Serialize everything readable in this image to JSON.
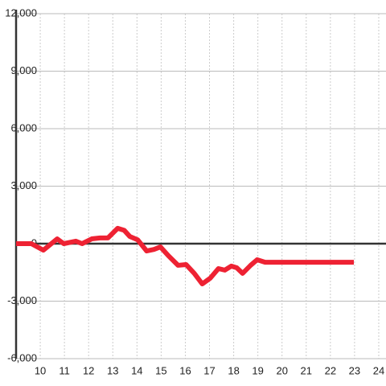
{
  "chart_data": {
    "type": "line",
    "x": [
      9,
      9.63,
      10.13,
      10.7,
      10.97,
      11.47,
      11.73,
      12.13,
      12.47,
      12.8,
      13.2,
      13.47,
      13.7,
      14.03,
      14.4,
      14.7,
      14.97,
      15.3,
      15.7,
      16.03,
      16.37,
      16.7,
      17.03,
      17.37,
      17.63,
      17.9,
      18.13,
      18.37,
      18.7,
      18.97,
      19.3,
      22.97
    ],
    "series": [
      {
        "color": "#ee2233",
        "values": [
          0,
          0,
          -340,
          250,
          0,
          130,
          0,
          250,
          300,
          300,
          800,
          700,
          380,
          200,
          -380,
          -300,
          -170,
          -630,
          -1130,
          -1090,
          -1550,
          -2100,
          -1800,
          -1300,
          -1380,
          -1170,
          -1260,
          -1550,
          -1130,
          -840,
          -970,
          -970
        ]
      }
    ],
    "xlim": [
      9,
      24.3
    ],
    "xticks": [
      10,
      11,
      12,
      13,
      14,
      15,
      16,
      17,
      18,
      19,
      20,
      21,
      22,
      23,
      24
    ],
    "ylim": [
      -6000,
      12000
    ],
    "yticks": [
      {
        "value": -6000,
        "label": "-6,000"
      },
      {
        "value": -3000,
        "label": "-3,000"
      },
      0,
      {
        "value": 3000,
        "label": "3,000"
      },
      {
        "value": 6000,
        "label": "6,000"
      },
      {
        "value": 9000,
        "label": "9,000"
      },
      {
        "value": 12000,
        "label": "12,000"
      }
    ],
    "grid": true
  }
}
